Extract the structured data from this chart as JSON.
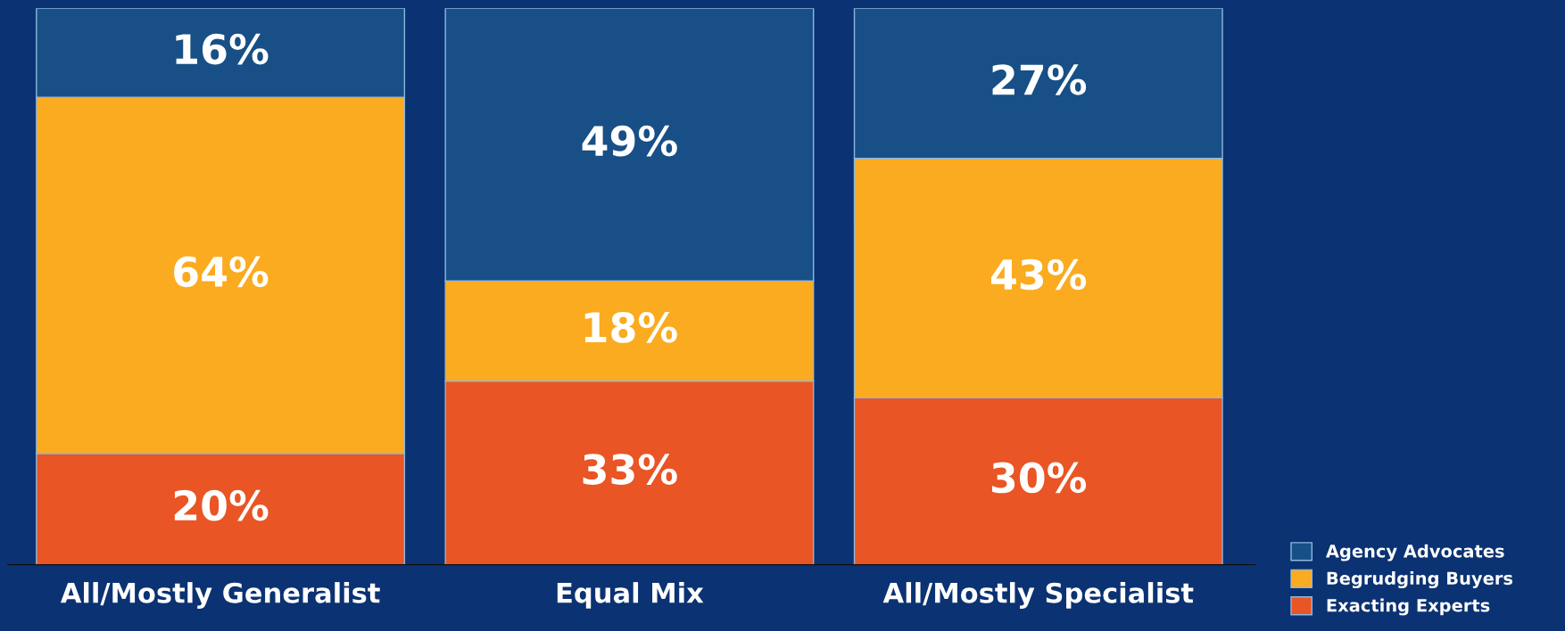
{
  "chart_data": {
    "type": "bar",
    "stacked": true,
    "legend": "bottom right",
    "grid": false,
    "categories": [
      "All/Mostly Generalist",
      "Equal Mix",
      "All/Mostly Specialist"
    ],
    "series": [
      {
        "name": "Exacting Experts",
        "color": "#e95524",
        "values": [
          20,
          33,
          30
        ],
        "value_labels": [
          "20%",
          "33%",
          "30%"
        ]
      },
      {
        "name": "Begrudging Buyers",
        "color": "#fbab1f",
        "values": [
          64,
          18,
          43
        ],
        "value_labels": [
          "64%",
          "18%",
          "43%"
        ]
      },
      {
        "name": "Agency Advocates",
        "color": "#174f86",
        "values": [
          16,
          49,
          27
        ],
        "value_labels": [
          "16%",
          "49%",
          "27%"
        ]
      }
    ]
  }
}
